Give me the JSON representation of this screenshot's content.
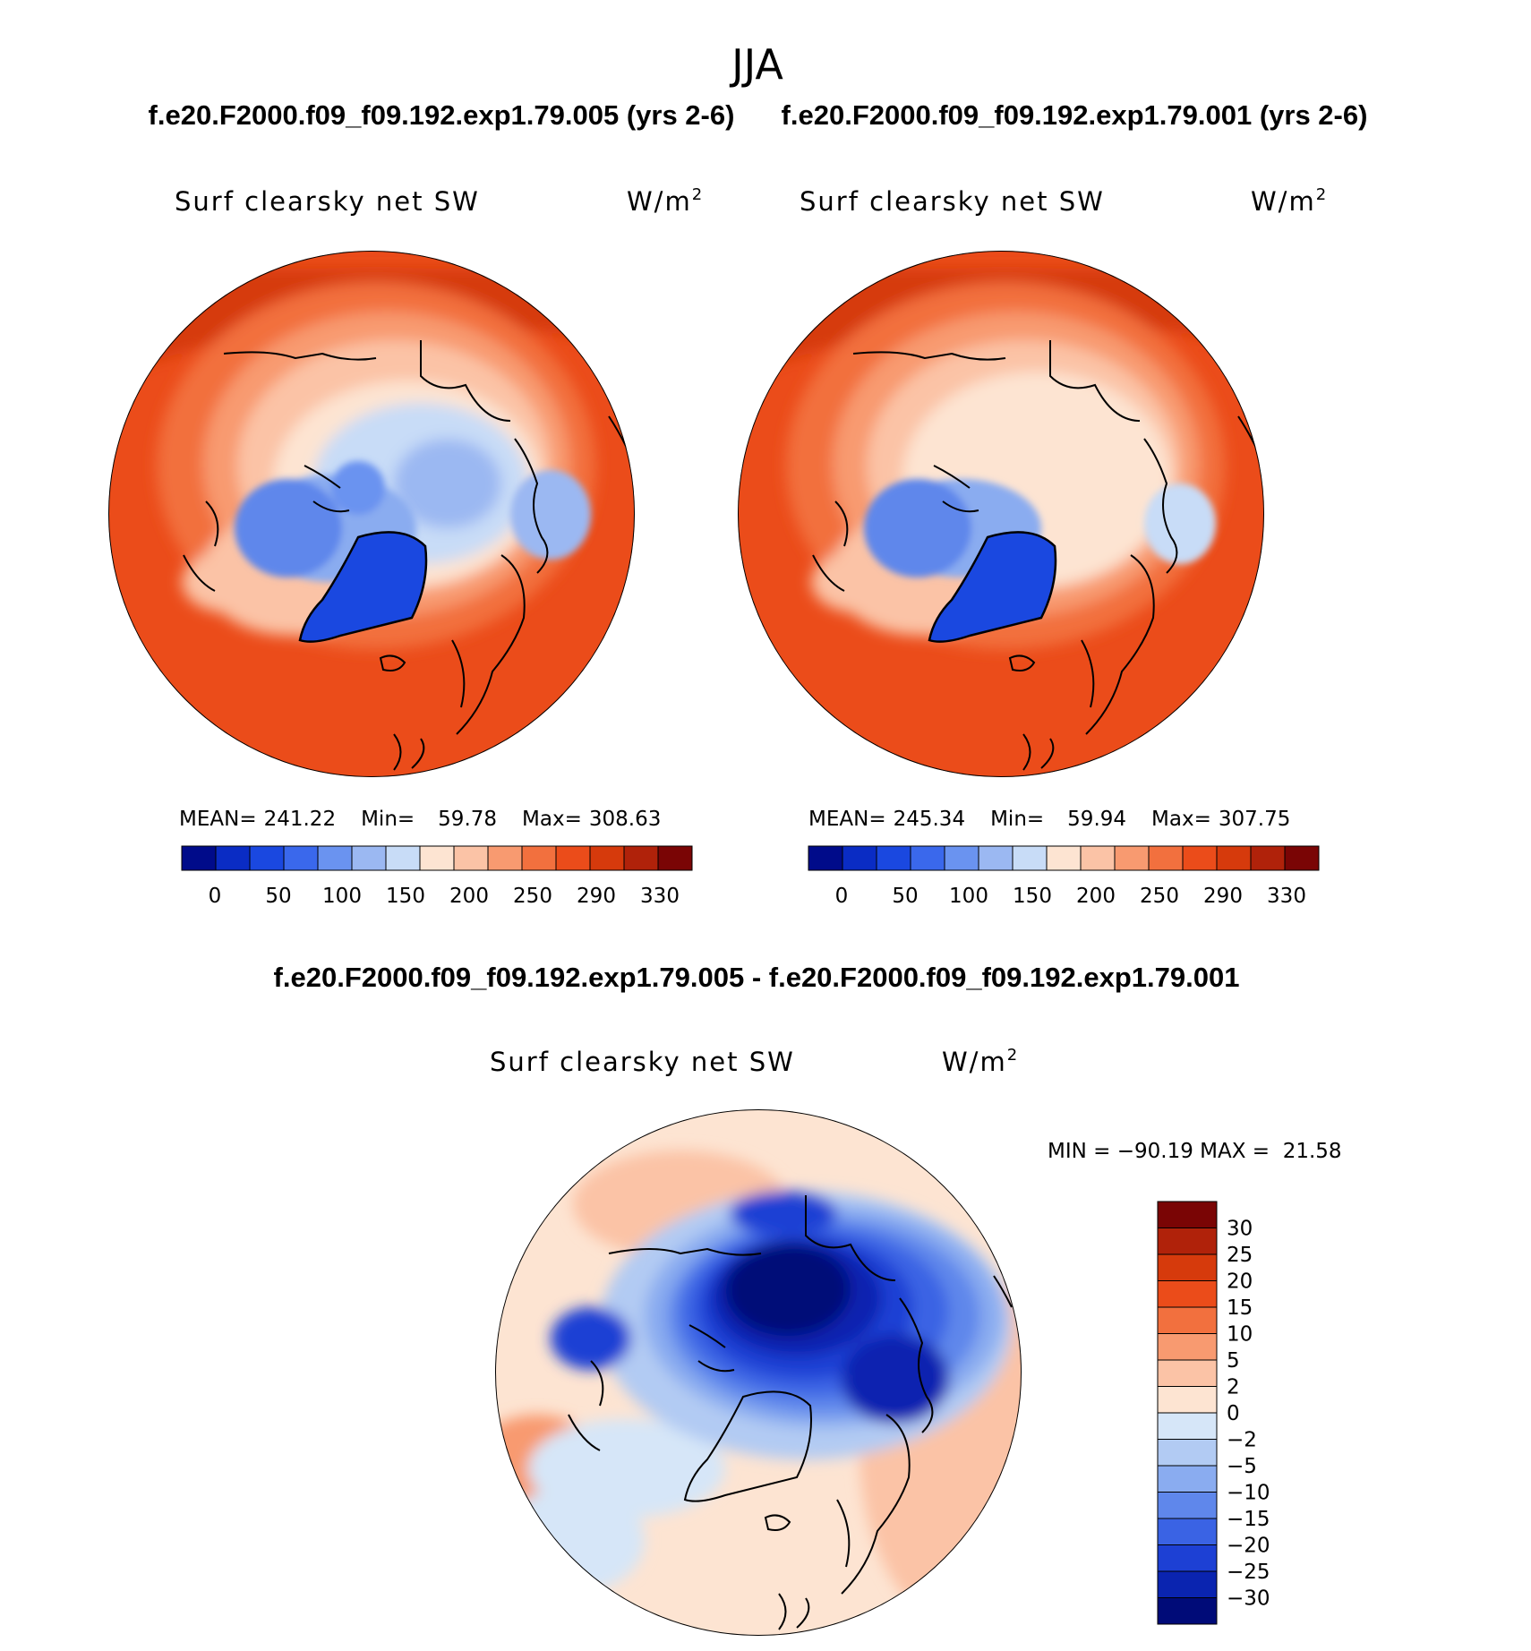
{
  "season": "JJA",
  "header": {
    "case_a": "f.e20.F2000.f09_f09.192.exp1.79.005 (yrs 2-6)",
    "case_b": "f.e20.F2000.f09_f09.192.exp1.79.001 (yrs 2-6)",
    "diff_title": "f.e20.F2000.f09_f09.192.exp1.79.005 - f.e20.F2000.f09_f09.192.exp1.79.001"
  },
  "chart_data": [
    {
      "type": "heatmap",
      "projection": "north-polar-stereographic",
      "variable": "Surf clearsky net SW",
      "units": "W/m",
      "units_power": "2",
      "stats": {
        "mean_label": "MEAN=",
        "mean": "241.22",
        "min_label": "Min=",
        "min": "59.78",
        "max_label": "Max=",
        "max": "308.63"
      },
      "levels": [
        "0",
        "50",
        "100",
        "150",
        "200",
        "250",
        "290",
        "330"
      ],
      "colors": [
        "#000b8a",
        "#0a2cc4",
        "#1a48e0",
        "#3a68ec",
        "#6a93f0",
        "#9bb8f2",
        "#c8dcf7",
        "#fde4d2",
        "#fbc3a6",
        "#f89a70",
        "#f2703e",
        "#eb4c1a",
        "#d63a0c",
        "#b0220a",
        "#7a0505"
      ],
      "summary": "Greenland and Canadian Arctic archipelago ~60-100; central Arctic ocean ~150-180; midlatitudes 250-308"
    },
    {
      "type": "heatmap",
      "projection": "north-polar-stereographic",
      "variable": "Surf clearsky net SW",
      "units": "W/m",
      "units_power": "2",
      "stats": {
        "mean_label": "MEAN=",
        "mean": "245.34",
        "min_label": "Min=",
        "min": "59.94",
        "max_label": "Max=",
        "max": "307.75"
      },
      "levels": [
        "0",
        "50",
        "100",
        "150",
        "200",
        "250",
        "290",
        "330"
      ],
      "colors": [
        "#000b8a",
        "#0a2cc4",
        "#1a48e0",
        "#3a68ec",
        "#6a93f0",
        "#9bb8f2",
        "#c8dcf7",
        "#fde4d2",
        "#fbc3a6",
        "#f89a70",
        "#f2703e",
        "#eb4c1a",
        "#d63a0c",
        "#b0220a",
        "#7a0505"
      ],
      "summary": "Greenland ~60-100; central Arctic ocean ~180-200; midlatitudes 250-307"
    },
    {
      "type": "heatmap",
      "projection": "north-polar-stereographic",
      "variable": "Surf clearsky net SW",
      "units": "W/m",
      "units_power": "2",
      "range_label": "MIN = −90.19 MAX =  21.58",
      "min": -90.19,
      "max": 21.58,
      "levels": [
        "30",
        "25",
        "20",
        "15",
        "10",
        "5",
        "2",
        "0",
        "−2",
        "−5",
        "−10",
        "−15",
        "−20",
        "−25",
        "−30"
      ],
      "colors": [
        "#7a0505",
        "#b0220a",
        "#d63a0c",
        "#eb4c1a",
        "#f2703e",
        "#f89a70",
        "#fbc3a6",
        "#fde4d2",
        "#d6e6f8",
        "#b2cbf3",
        "#8aacf0",
        "#5f87eb",
        "#3a63e4",
        "#1d40d4",
        "#0a24b0",
        "#000b78"
      ],
      "summary": "Strong negative difference (< -30) over central Arctic ocean and Siberian coast; weak positive (2-10) over midlatitudes"
    }
  ]
}
